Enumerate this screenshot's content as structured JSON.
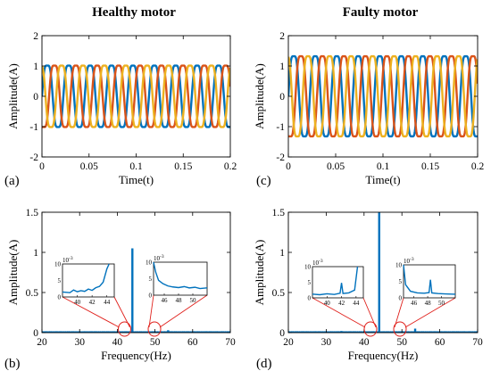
{
  "panel_titles": [
    "Healthy motor",
    "Faulty motor"
  ],
  "chart_data": [
    {
      "type": "line",
      "panel_label": "(a)",
      "title": "Healthy motor",
      "xlabel": "Time(t)",
      "ylabel": "Amplitude(A)",
      "xlim": [
        0,
        0.2
      ],
      "ylim": [
        -2,
        2
      ],
      "xticks": [
        "0",
        "0.05",
        "0.1",
        "0.15",
        "0.2"
      ],
      "yticks": [
        "-2",
        "-1",
        "0",
        "1",
        "2"
      ],
      "waveform": {
        "frequency_hz": 44,
        "amplitude": 1.15,
        "phase_offsets_deg": [
          0,
          -120,
          120
        ]
      },
      "colors": [
        "#0072BD",
        "#D95319",
        "#EDB120"
      ]
    },
    {
      "type": "line",
      "panel_label": "(c)",
      "xlabel": "Time(t)",
      "ylabel": "Amplitude(A)",
      "xlim": [
        0,
        0.2
      ],
      "ylim": [
        -2,
        2
      ],
      "xticks": [
        "0",
        "0.05",
        "0.1",
        "0.15",
        "0.2"
      ],
      "yticks": [
        "-2",
        "-1",
        "0",
        "1",
        "2"
      ],
      "waveform": {
        "frequency_hz": 44,
        "amplitude": 1.5,
        "phase_offsets_deg": [
          0,
          -120,
          120
        ]
      },
      "colors": [
        "#0072BD",
        "#D95319",
        "#EDB120"
      ]
    },
    {
      "type": "line",
      "panel_label": "(b)",
      "xlabel": "Frequency(Hz)",
      "ylabel": "Amplitude(A)",
      "xlim": [
        20,
        70
      ],
      "ylim": [
        0,
        1.5
      ],
      "xticks": [
        "20",
        "30",
        "40",
        "50",
        "60",
        "70"
      ],
      "yticks": [
        "0",
        "0.5",
        "1",
        "1.5"
      ],
      "color": "#0072BD",
      "peaks": [
        {
          "x": 44,
          "y": 1.05
        },
        {
          "x": 53.5,
          "y": 0.03
        }
      ],
      "insets": [
        {
          "scale_label": "10-3",
          "xlim": [
            38,
            45
          ],
          "ylim": [
            0,
            10
          ],
          "xticks": [
            "40",
            "42",
            "44"
          ],
          "yticks": [
            "0",
            "5",
            "10"
          ],
          "series": [
            [
              38,
              1.5
            ],
            [
              39,
              1.3
            ],
            [
              39.5,
              2.1
            ],
            [
              40,
              1.6
            ],
            [
              40.5,
              1.9
            ],
            [
              41,
              1.7
            ],
            [
              41.5,
              2.4
            ],
            [
              42,
              2.0
            ],
            [
              42.5,
              2.8
            ],
            [
              43,
              3.2
            ],
            [
              43.5,
              4.5
            ],
            [
              44,
              8.5
            ],
            [
              44.3,
              10
            ]
          ]
        },
        {
          "scale_label": "10-3",
          "xlim": [
            44.5,
            52
          ],
          "ylim": [
            0,
            10
          ],
          "xticks": [
            "46",
            "48",
            "50"
          ],
          "yticks": [
            "0",
            "5",
            "10"
          ],
          "series": [
            [
              44.5,
              10
            ],
            [
              44.8,
              7
            ],
            [
              45.2,
              4.5
            ],
            [
              45.8,
              3.5
            ],
            [
              46.5,
              2.8
            ],
            [
              47.2,
              2.5
            ],
            [
              48,
              2.3
            ],
            [
              48.8,
              2.6
            ],
            [
              49.5,
              2.2
            ],
            [
              50.3,
              2.4
            ],
            [
              51,
              2.0
            ],
            [
              52,
              2.2
            ]
          ]
        }
      ]
    },
    {
      "type": "line",
      "panel_label": "(d)",
      "xlabel": "Frequency(Hz)",
      "ylabel": "Amplitude(A)",
      "xlim": [
        20,
        70
      ],
      "ylim": [
        0,
        1.5
      ],
      "xticks": [
        "20",
        "30",
        "40",
        "50",
        "60",
        "70"
      ],
      "yticks": [
        "0",
        "0.5",
        "1",
        "1.5"
      ],
      "color": "#0072BD",
      "peaks": [
        {
          "x": 44,
          "y": 1.52
        },
        {
          "x": 53.5,
          "y": 0.05
        },
        {
          "x": 34,
          "y": 0.02
        }
      ],
      "insets": [
        {
          "scale_label": "10-3",
          "xlim": [
            38,
            45
          ],
          "ylim": [
            0,
            10
          ],
          "xticks": [
            "40",
            "42",
            "44"
          ],
          "yticks": [
            "0",
            "5",
            "10"
          ],
          "series": [
            [
              38,
              1.2
            ],
            [
              39,
              1.0
            ],
            [
              40,
              1.3
            ],
            [
              41,
              1.1
            ],
            [
              41.8,
              1.5
            ],
            [
              42,
              4.8
            ],
            [
              42.2,
              1.4
            ],
            [
              43,
              1.6
            ],
            [
              43.8,
              2.5
            ],
            [
              44.2,
              10
            ]
          ]
        },
        {
          "scale_label": "10-3",
          "xlim": [
            44.5,
            52
          ],
          "ylim": [
            0,
            10
          ],
          "xticks": [
            "46",
            "48",
            "50"
          ],
          "yticks": [
            "0",
            "5",
            "10"
          ],
          "series": [
            [
              44.5,
              10
            ],
            [
              44.8,
              4
            ],
            [
              45.5,
              2
            ],
            [
              46.5,
              1.5
            ],
            [
              47.5,
              1.4
            ],
            [
              48.2,
              1.6
            ],
            [
              48.4,
              5.5
            ],
            [
              48.6,
              1.5
            ],
            [
              49.5,
              1.3
            ],
            [
              50.5,
              1.2
            ],
            [
              52,
              1.1
            ]
          ]
        }
      ]
    }
  ]
}
